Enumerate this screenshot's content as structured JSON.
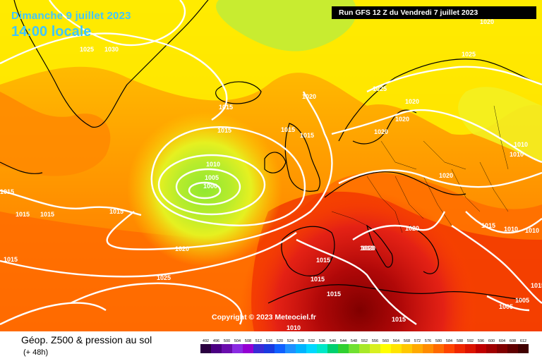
{
  "title": {
    "date": "Dimanche 9 juillet 2023",
    "time": "14:00 locale"
  },
  "run_info": "Run GFS 12 Z du Vendredi 7 juillet 2023",
  "copyright": "Copyright © 2023 Meteociel.fr",
  "footer": {
    "title": "Géop. Z500 & pression au sol",
    "subtitle": "(+ 48h)"
  },
  "legend": {
    "values": [
      "492",
      "496",
      "500",
      "504",
      "508",
      "512",
      "516",
      "520",
      "524",
      "528",
      "532",
      "536",
      "540",
      "544",
      "548",
      "552",
      "556",
      "560",
      "564",
      "568",
      "572",
      "576",
      "580",
      "584",
      "588",
      "592",
      "596",
      "600",
      "604",
      "608",
      "612"
    ],
    "colors": [
      "#2a0040",
      "#4b0082",
      "#6a0dad",
      "#8a2be2",
      "#9400d3",
      "#3a2bd6",
      "#1a3ae0",
      "#1060ff",
      "#1e90ff",
      "#00b4ff",
      "#00d8ff",
      "#00e8c8",
      "#00d070",
      "#30d030",
      "#70e030",
      "#a8e828",
      "#d8f020",
      "#ffff00",
      "#ffe400",
      "#ffc800",
      "#ffaa00",
      "#ff8c00",
      "#ff6a00",
      "#ff4500",
      "#f02800",
      "#dc1400",
      "#c00000",
      "#a00000",
      "#800000",
      "#600000",
      "#400000"
    ]
  },
  "isobar_labels": [
    {
      "text": "1025"
    },
    {
      "text": "1030"
    },
    {
      "text": "1015"
    },
    {
      "text": "1015"
    },
    {
      "text": "1020"
    },
    {
      "text": "1015"
    },
    {
      "text": "1015"
    },
    {
      "text": "1010"
    },
    {
      "text": "1005"
    },
    {
      "text": "1000"
    },
    {
      "text": "1015"
    },
    {
      "text": "1015"
    },
    {
      "text": "1015"
    },
    {
      "text": "1015"
    },
    {
      "text": "1020"
    },
    {
      "text": "1025"
    },
    {
      "text": "1015"
    },
    {
      "text": "1025"
    },
    {
      "text": "1020"
    },
    {
      "text": "1020"
    },
    {
      "text": "1025"
    },
    {
      "text": "1020"
    },
    {
      "text": "1020"
    },
    {
      "text": "1010"
    },
    {
      "text": "1010"
    },
    {
      "text": "1020"
    },
    {
      "text": "1020"
    },
    {
      "text": "1015"
    },
    {
      "text": "1010"
    },
    {
      "text": "1015"
    },
    {
      "text": "1010"
    },
    {
      "text": "1015"
    },
    {
      "text": "1015"
    },
    {
      "text": "1015"
    },
    {
      "text": "1005"
    },
    {
      "text": "1005"
    },
    {
      "text": "1010"
    },
    {
      "text": "1015"
    },
    {
      "text": "1010"
    },
    {
      "text": "1020"
    }
  ]
}
